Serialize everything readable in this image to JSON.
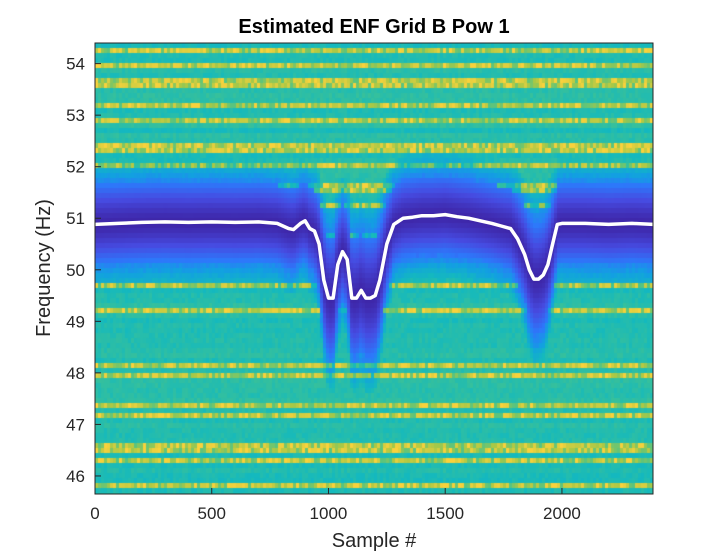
{
  "chart_data": {
    "type": "heatmap",
    "title": "Estimated ENF Grid B Pow 1",
    "xlabel": "Sample #",
    "ylabel": "Frequency (Hz)",
    "xlim": [
      0,
      2390
    ],
    "ylim": [
      45.65,
      54.4
    ],
    "x_ticks": [
      0,
      500,
      1000,
      1500,
      2000
    ],
    "y_ticks": [
      46,
      47,
      48,
      49,
      50,
      51,
      52,
      53,
      54
    ],
    "x_tick_labels": [
      "0",
      "500",
      "1000",
      "1500",
      "2000"
    ],
    "y_tick_labels": [
      "46",
      "47",
      "48",
      "49",
      "50",
      "51",
      "52",
      "53",
      "54"
    ],
    "colormap": "parula",
    "colors": {
      "line": "#ffffff",
      "cmap_low": "#3e26a8",
      "cmap_mid": "#12b3d7",
      "cmap_high": "#f9d23c"
    },
    "series": [
      {
        "x": [
          0,
          100,
          200,
          300,
          400,
          500,
          600,
          700,
          780,
          830,
          850,
          880,
          900,
          920,
          940,
          960,
          980,
          1000,
          1020,
          1040,
          1060,
          1080,
          1100,
          1120,
          1140,
          1160,
          1180,
          1200,
          1220,
          1250,
          1280,
          1320,
          1360,
          1400,
          1450,
          1500,
          1550,
          1600,
          1650,
          1700,
          1740,
          1780,
          1810,
          1840,
          1860,
          1880,
          1900,
          1920,
          1940,
          1960,
          1980,
          2000,
          2100,
          2200,
          2300,
          2390
        ],
        "values": [
          50.88,
          50.9,
          50.92,
          50.93,
          50.92,
          50.93,
          50.92,
          50.93,
          50.9,
          50.8,
          50.78,
          50.9,
          50.95,
          50.8,
          50.75,
          50.5,
          49.8,
          49.45,
          49.45,
          50.1,
          50.35,
          50.2,
          49.45,
          49.45,
          49.6,
          49.45,
          49.45,
          49.5,
          49.8,
          50.5,
          50.88,
          51.0,
          51.02,
          51.05,
          51.05,
          51.07,
          51.03,
          51.0,
          50.95,
          50.9,
          50.85,
          50.8,
          50.6,
          50.3,
          50.0,
          49.82,
          49.82,
          49.9,
          50.1,
          50.5,
          50.88,
          50.9,
          50.9,
          50.88,
          50.9,
          50.88
        ]
      }
    ],
    "grid": false,
    "legend": "none"
  }
}
